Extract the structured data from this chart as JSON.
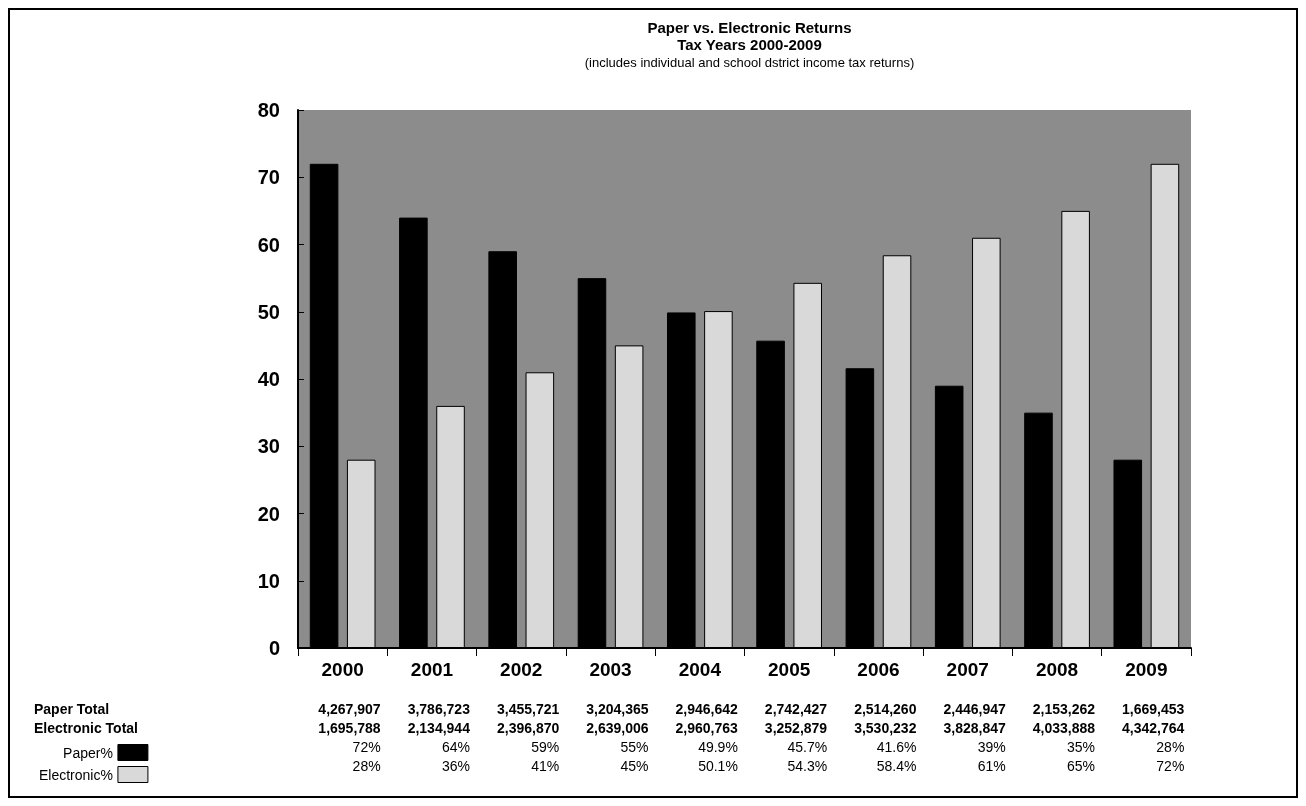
{
  "chart_data": {
    "type": "bar",
    "title": "Paper vs. Electronic Returns\nTax Years 2000-2009",
    "subtitle": "(includes individual and school dstrict income tax returns)",
    "categories": [
      "2000",
      "2001",
      "2002",
      "2003",
      "2004",
      "2005",
      "2006",
      "2007",
      "2008",
      "2009"
    ],
    "series": [
      {
        "name": "Paper%",
        "color": "#000000",
        "values": [
          72,
          64,
          59,
          55,
          49.9,
          45.7,
          41.6,
          39,
          35,
          28
        ],
        "value_labels": [
          "72%",
          "64%",
          "59%",
          "55%",
          "49.9%",
          "45.7%",
          "41.6%",
          "39%",
          "35%",
          "28%"
        ]
      },
      {
        "name": "Electronic%",
        "color": "#d9d9d9",
        "values": [
          28,
          36,
          41,
          45,
          50.1,
          54.3,
          58.4,
          61,
          65,
          72
        ],
        "value_labels": [
          "28%",
          "36%",
          "41%",
          "45%",
          "50.1%",
          "54.3%",
          "58.4%",
          "61%",
          "65%",
          "72%"
        ]
      }
    ],
    "ylim": [
      0,
      80
    ],
    "yticks": [
      0,
      10,
      20,
      30,
      40,
      50,
      60,
      70,
      80
    ],
    "grid": false,
    "legend": "bottom left",
    "annotations": [
      "Paper Total",
      "4,267,907",
      "3,786,723",
      "3,455,721",
      "3,204,365",
      "2,946,642",
      "2,742,427",
      "2,514,260",
      "2,446,947",
      "2,153,262",
      "1,669,453",
      "Electronic Total",
      "1,695,788",
      "2,134,944",
      "2,396,870",
      "2,639,006",
      "2,960,763",
      "3,252,879",
      "3,530,232",
      "3,828,847",
      "4,033,888",
      "4,342,764"
    ]
  }
}
